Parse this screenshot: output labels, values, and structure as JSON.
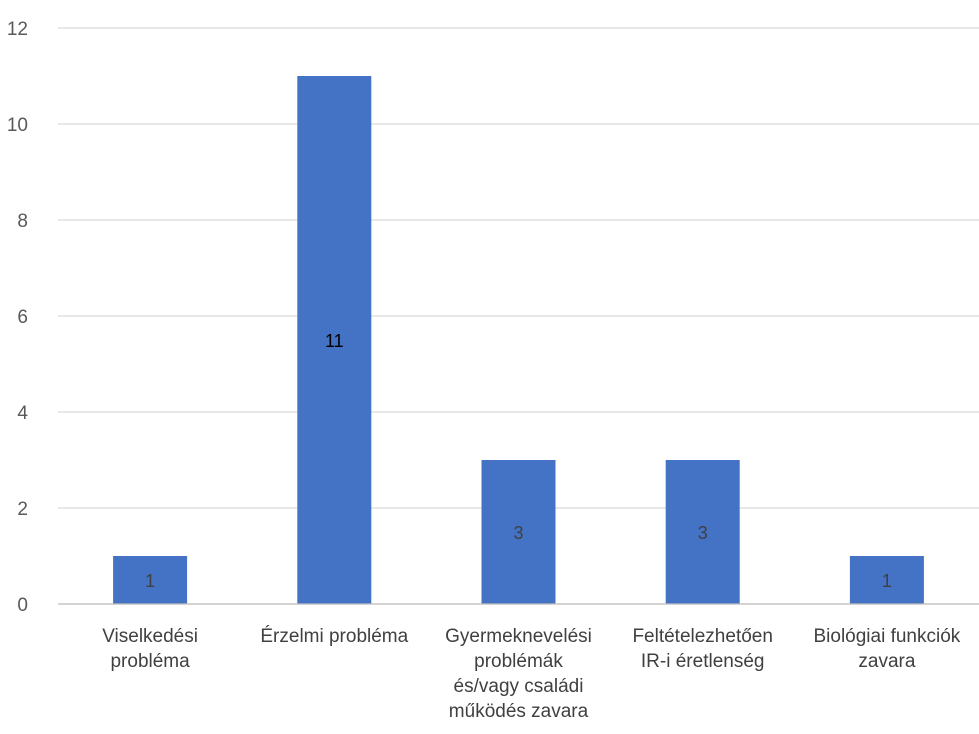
{
  "chart_data": {
    "type": "bar",
    "title": "",
    "xlabel": "",
    "ylabel": "",
    "ylim": [
      0,
      12
    ],
    "yticks": [
      0,
      2,
      4,
      6,
      8,
      10,
      12
    ],
    "grid": true,
    "categories": [
      [
        "Viselkedési",
        "probléma"
      ],
      [
        "Érzelmi probléma"
      ],
      [
        "Gyermeknevelési",
        "problémák",
        "és/vagy családi",
        "működés zavara"
      ],
      [
        "Feltételezhetően",
        "IR-i éretlenség"
      ],
      [
        "Biológiai funkciók",
        "zavara"
      ]
    ],
    "values": [
      1,
      11,
      3,
      3,
      1
    ],
    "data_labels": [
      "1",
      "11",
      "3",
      "3",
      "1"
    ],
    "bar_color": "#4472C4",
    "gridline_color": "#D9D9D9",
    "label_color_dark": "#000000",
    "label_color_default": "#404040"
  }
}
